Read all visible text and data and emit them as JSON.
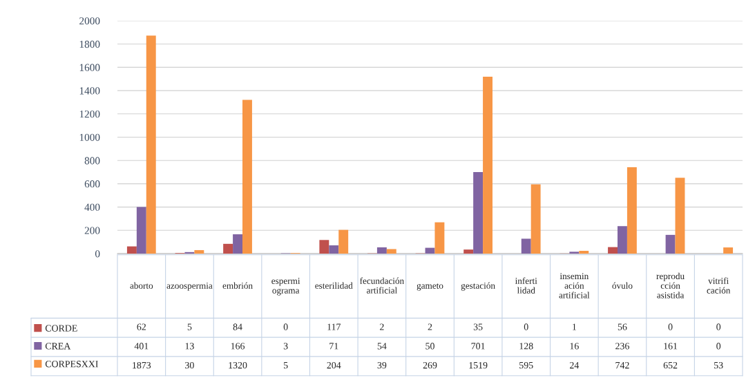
{
  "chart_data": {
    "type": "bar",
    "categories": [
      "aborto",
      "azoospermia",
      "embrión",
      "espermiograma",
      "esterilidad",
      "fecundación artificial",
      "gameto",
      "gestación",
      "infertilidad",
      "inseminación artificial",
      "óvulo",
      "reproducción asistida",
      "vitrificación"
    ],
    "series": [
      {
        "name": "CORDE",
        "color": "#c0504d",
        "values": [
          62,
          5,
          84,
          0,
          117,
          2,
          2,
          35,
          0,
          1,
          56,
          0,
          0
        ]
      },
      {
        "name": "CREA",
        "color": "#8064a2",
        "values": [
          401,
          13,
          166,
          3,
          71,
          54,
          50,
          701,
          128,
          16,
          236,
          161,
          0
        ]
      },
      {
        "name": "CORPESXXI",
        "color": "#f79646",
        "values": [
          1873,
          30,
          1320,
          5,
          204,
          39,
          269,
          1519,
          595,
          24,
          742,
          652,
          53
        ]
      }
    ],
    "ylim": [
      0,
      2000
    ],
    "yticks": [
      0,
      200,
      400,
      600,
      800,
      1000,
      1200,
      1400,
      1600,
      1800,
      2000
    ],
    "grid": "y",
    "data_labels": true,
    "legend": "bottom left"
  }
}
